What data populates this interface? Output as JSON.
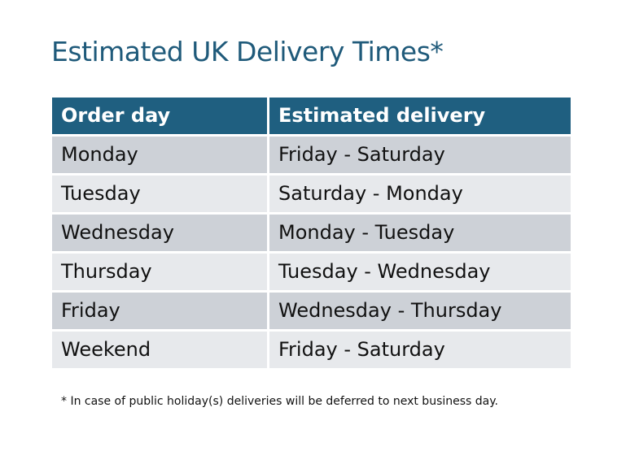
{
  "title": "Estimated UK Delivery Times*",
  "table": {
    "headers": [
      "Order day",
      "Estimated delivery"
    ],
    "rows": [
      [
        "Monday",
        "Friday - Saturday"
      ],
      [
        "Tuesday",
        "Saturday - Monday"
      ],
      [
        "Wednesday",
        "Monday - Tuesday"
      ],
      [
        "Thursday",
        "Tuesday - Wednesday"
      ],
      [
        "Friday",
        "Wednesday - Thursday"
      ],
      [
        "Weekend",
        "Friday - Saturday"
      ]
    ]
  },
  "footnote": "* In case of public holiday(s) deliveries will be deferred to next business day.",
  "colors": {
    "header": "#1f5f80",
    "row_odd": "#cdd1d7",
    "row_even": "#e7e9ec",
    "title": "#1f5a7a"
  }
}
